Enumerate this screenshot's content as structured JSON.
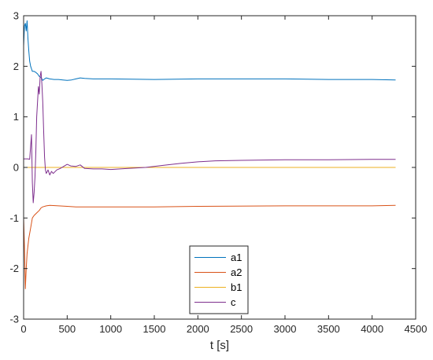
{
  "chart_data": {
    "type": "line",
    "xlabel": "t [s]",
    "ylabel": "",
    "xlim": [
      0,
      4500
    ],
    "ylim": [
      -3,
      3
    ],
    "x_ticks": [
      0,
      500,
      1000,
      1500,
      2000,
      2500,
      3000,
      3500,
      4000,
      4500
    ],
    "y_ticks": [
      -3,
      -2,
      -1,
      0,
      1,
      2,
      3
    ],
    "grid": false,
    "legend_position": "bottom-center",
    "series": [
      {
        "name": "a1",
        "color": "#0072bd",
        "points": [
          [
            0,
            2.4
          ],
          [
            10,
            2.8
          ],
          [
            20,
            2.85
          ],
          [
            30,
            2.7
          ],
          [
            40,
            2.9
          ],
          [
            50,
            2.55
          ],
          [
            60,
            2.3
          ],
          [
            70,
            2.1
          ],
          [
            80,
            2.0
          ],
          [
            90,
            1.95
          ],
          [
            100,
            1.9
          ],
          [
            120,
            1.9
          ],
          [
            140,
            1.88
          ],
          [
            160,
            1.85
          ],
          [
            180,
            1.8
          ],
          [
            200,
            1.78
          ],
          [
            220,
            1.72
          ],
          [
            240,
            1.75
          ],
          [
            260,
            1.77
          ],
          [
            300,
            1.75
          ],
          [
            350,
            1.74
          ],
          [
            400,
            1.74
          ],
          [
            450,
            1.73
          ],
          [
            500,
            1.72
          ],
          [
            550,
            1.73
          ],
          [
            600,
            1.75
          ],
          [
            650,
            1.77
          ],
          [
            700,
            1.76
          ],
          [
            800,
            1.75
          ],
          [
            1000,
            1.75
          ],
          [
            1500,
            1.74
          ],
          [
            2000,
            1.75
          ],
          [
            2500,
            1.75
          ],
          [
            3000,
            1.75
          ],
          [
            3500,
            1.74
          ],
          [
            4000,
            1.74
          ],
          [
            4270,
            1.73
          ]
        ]
      },
      {
        "name": "a2",
        "color": "#d95319",
        "points": [
          [
            0,
            -1.0
          ],
          [
            10,
            -1.6
          ],
          [
            20,
            -2.4
          ],
          [
            30,
            -2.0
          ],
          [
            40,
            -1.7
          ],
          [
            50,
            -1.55
          ],
          [
            60,
            -1.4
          ],
          [
            80,
            -1.2
          ],
          [
            100,
            -1.0
          ],
          [
            120,
            -0.95
          ],
          [
            150,
            -0.9
          ],
          [
            180,
            -0.85
          ],
          [
            200,
            -0.8
          ],
          [
            220,
            -0.78
          ],
          [
            260,
            -0.76
          ],
          [
            300,
            -0.75
          ],
          [
            400,
            -0.76
          ],
          [
            500,
            -0.77
          ],
          [
            600,
            -0.78
          ],
          [
            700,
            -0.78
          ],
          [
            1000,
            -0.78
          ],
          [
            1500,
            -0.78
          ],
          [
            2000,
            -0.77
          ],
          [
            3000,
            -0.76
          ],
          [
            4000,
            -0.76
          ],
          [
            4270,
            -0.75
          ]
        ]
      },
      {
        "name": "b1",
        "color": "#edb120",
        "points": [
          [
            0,
            0.0
          ],
          [
            4270,
            0.0
          ]
        ]
      },
      {
        "name": "c",
        "color": "#7e2f8e",
        "points": [
          [
            0,
            0.17
          ],
          [
            50,
            0.17
          ],
          [
            70,
            0.16
          ],
          [
            90,
            0.65
          ],
          [
            100,
            -0.3
          ],
          [
            110,
            -0.7
          ],
          [
            120,
            -0.5
          ],
          [
            130,
            -0.2
          ],
          [
            140,
            0.3
          ],
          [
            150,
            1.0
          ],
          [
            160,
            1.3
          ],
          [
            170,
            1.6
          ],
          [
            180,
            1.45
          ],
          [
            190,
            1.8
          ],
          [
            200,
            1.9
          ],
          [
            210,
            1.65
          ],
          [
            220,
            1.3
          ],
          [
            230,
            0.7
          ],
          [
            240,
            0.2
          ],
          [
            250,
            -0.05
          ],
          [
            260,
            -0.12
          ],
          [
            280,
            -0.05
          ],
          [
            300,
            -0.15
          ],
          [
            320,
            -0.08
          ],
          [
            340,
            -0.12
          ],
          [
            380,
            -0.05
          ],
          [
            420,
            -0.02
          ],
          [
            460,
            0.02
          ],
          [
            500,
            0.06
          ],
          [
            540,
            0.03
          ],
          [
            600,
            0.02
          ],
          [
            650,
            0.05
          ],
          [
            700,
            -0.02
          ],
          [
            800,
            -0.03
          ],
          [
            900,
            -0.03
          ],
          [
            1000,
            -0.04
          ],
          [
            1200,
            -0.02
          ],
          [
            1400,
            0.0
          ],
          [
            1600,
            0.04
          ],
          [
            1800,
            0.08
          ],
          [
            2000,
            0.11
          ],
          [
            2200,
            0.13
          ],
          [
            2500,
            0.14
          ],
          [
            3000,
            0.15
          ],
          [
            3500,
            0.15
          ],
          [
            4000,
            0.16
          ],
          [
            4270,
            0.16
          ]
        ]
      }
    ]
  }
}
